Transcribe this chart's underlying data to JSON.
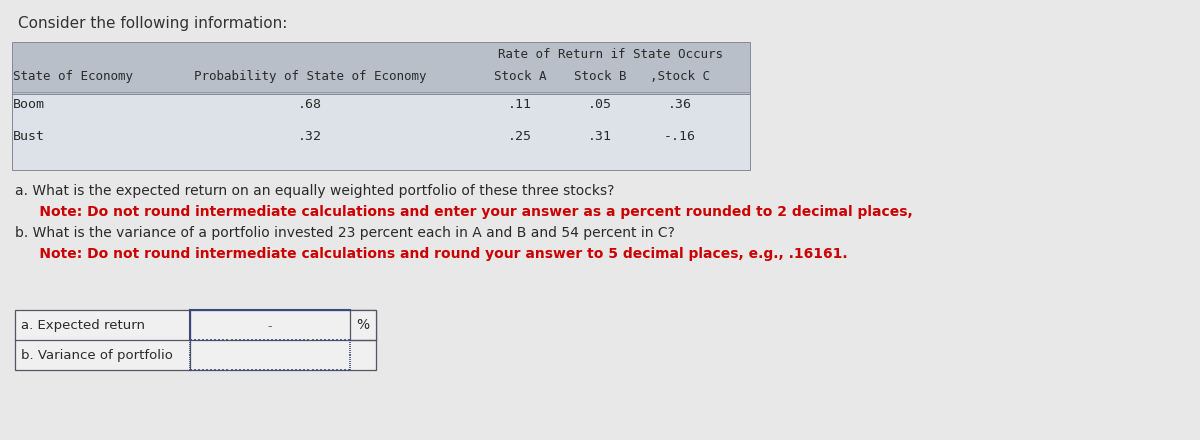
{
  "title": "Consider the following information:",
  "page_bg": "#e8e8e8",
  "table_header_bg": "#b8bfc8",
  "table_body_bg": "#dde2e8",
  "table_border": "#888899",
  "font_color_black": "#2a2a2a",
  "font_color_red": "#cc0000",
  "col_headers_row1_left": "State of Economy",
  "col_headers_row1_prob": "Probability of State of Economy",
  "col_headers_row1_rate": "Rate of Return if State Occurs",
  "col_headers_row2_a": "Stock A",
  "col_headers_row2_b": "Stock B",
  "col_headers_row2_c": ",Stock C",
  "states": [
    "Boom",
    "Bust"
  ],
  "probabilities": [
    ".68",
    ".32"
  ],
  "stock_a": [
    ".11",
    ".25"
  ],
  "stock_b": [
    ".05",
    ".31"
  ],
  "stock_c": [
    ".36",
    "-.16"
  ],
  "question_a": "a. What is the expected return on an equally weighted portfolio of these three stocks?",
  "note_a": "     Note: Do not round intermediate calculations and enter your answer as a percent rounded to 2 decimal places,",
  "question_b": "b. What is the variance of a portfolio invested 23 percent each in A and B and 54 percent in C?",
  "note_b": "     Note: Do not round intermediate calculations and round your answer to 5 decimal places, e.g., .16161.",
  "answer_label_a": "a. Expected return",
  "answer_label_b": "b. Variance of portfolio",
  "percent_sign": "%",
  "answer_box_bg": "#f0f0f0",
  "answer_box_border": "#3a4a7a",
  "dash_color": "#3a4a7a"
}
